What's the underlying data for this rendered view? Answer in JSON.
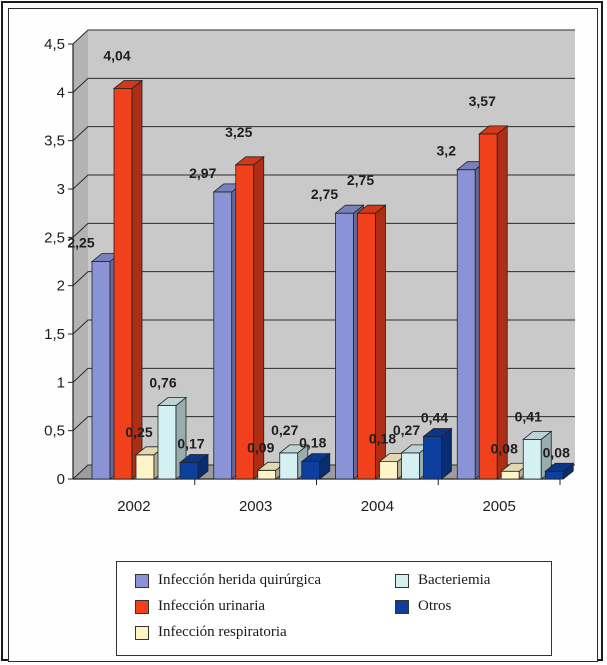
{
  "chart_data": {
    "type": "bar",
    "categories": [
      "2002",
      "2003",
      "2004",
      "2005"
    ],
    "series": [
      {
        "name": "Infección herida quirúrgica",
        "values": [
          2.25,
          2.97,
          2.75,
          3.2
        ],
        "labels": [
          "2,25",
          "2,97",
          "2,75",
          "3,2"
        ],
        "color": "#8a93d6"
      },
      {
        "name": "Infección urinaria",
        "values": [
          4.04,
          3.25,
          2.75,
          3.57
        ],
        "labels": [
          "4,04",
          "3,25",
          "2,75",
          "3,57"
        ],
        "color": "#f0401c"
      },
      {
        "name": "Infección respiratoria",
        "values": [
          0.25,
          0.09,
          0.18,
          0.08
        ],
        "labels": [
          "0,25",
          "0,09",
          "0,18",
          "0,08"
        ],
        "color": "#fdf5c8"
      },
      {
        "name": "Bacteriemia",
        "values": [
          0.76,
          0.27,
          0.27,
          0.41
        ],
        "labels": [
          "0,76",
          "0,27",
          "0,27",
          "0,41"
        ],
        "color": "#d4f0f2"
      },
      {
        "name": "Otros",
        "values": [
          0.17,
          0.18,
          0.44,
          0.08
        ],
        "labels": [
          "0,17",
          "0,18",
          "0,44",
          "0,08"
        ],
        "color": "#0d3f9e"
      }
    ],
    "ylim": [
      0,
      4.5
    ],
    "yticks": [
      "0",
      "0,5",
      "1",
      "1,5",
      "2",
      "2,5",
      "3",
      "3,5",
      "4",
      "4,5"
    ],
    "grid": true,
    "legend_position": "bottom"
  }
}
